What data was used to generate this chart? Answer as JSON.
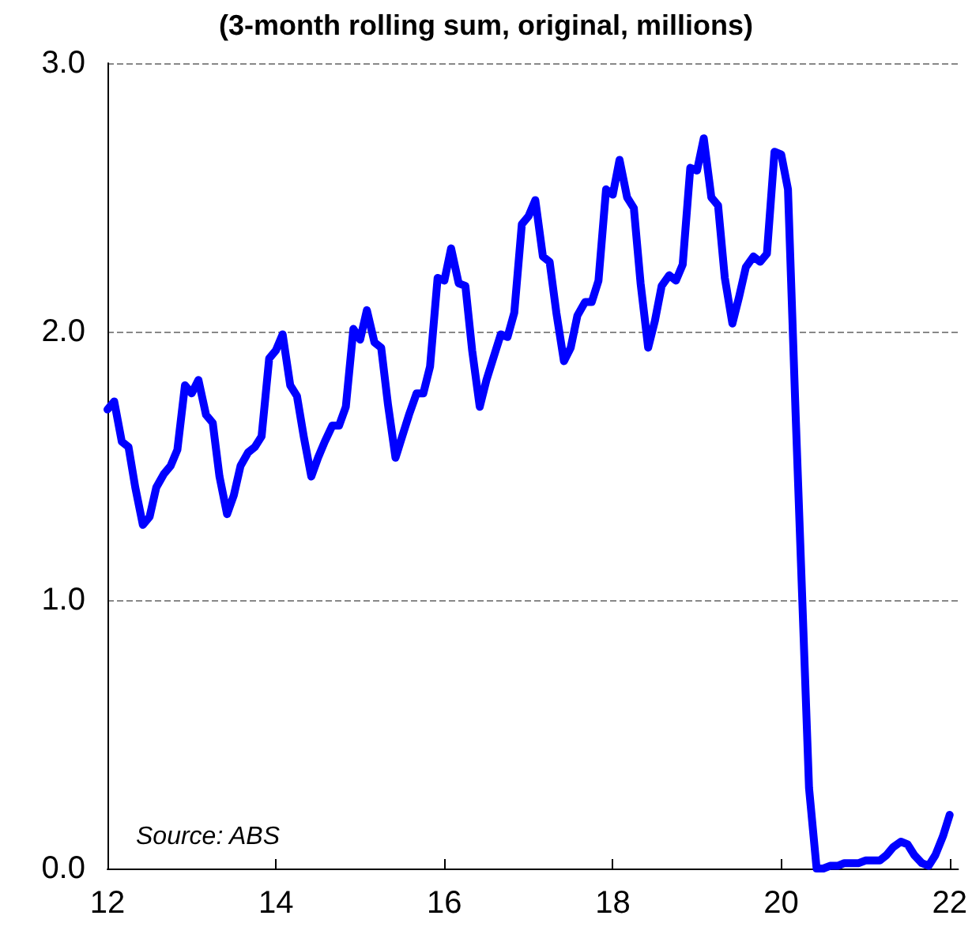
{
  "chart_data": {
    "type": "line",
    "title": "(3-month rolling sum, original, millions)",
    "annotations": [
      "Source: ABS"
    ],
    "x": [
      12,
      12.08,
      12.17,
      12.25,
      12.33,
      12.42,
      12.5,
      12.58,
      12.67,
      12.75,
      12.83,
      12.92,
      13,
      13.08,
      13.17,
      13.25,
      13.33,
      13.42,
      13.5,
      13.58,
      13.67,
      13.75,
      13.83,
      13.92,
      14,
      14.08,
      14.17,
      14.25,
      14.33,
      14.42,
      14.5,
      14.58,
      14.67,
      14.75,
      14.83,
      14.92,
      15,
      15.08,
      15.17,
      15.25,
      15.33,
      15.42,
      15.5,
      15.58,
      15.67,
      15.75,
      15.83,
      15.92,
      16,
      16.08,
      16.17,
      16.25,
      16.33,
      16.42,
      16.5,
      16.58,
      16.67,
      16.75,
      16.83,
      16.92,
      17,
      17.08,
      17.17,
      17.25,
      17.33,
      17.42,
      17.5,
      17.58,
      17.67,
      17.75,
      17.83,
      17.92,
      18,
      18.08,
      18.17,
      18.25,
      18.33,
      18.42,
      18.5,
      18.58,
      18.67,
      18.75,
      18.83,
      18.92,
      19,
      19.08,
      19.17,
      19.25,
      19.33,
      19.42,
      19.5,
      19.58,
      19.67,
      19.75,
      19.83,
      19.92,
      20,
      20.08,
      20.17,
      20.25,
      20.33,
      20.42,
      20.5,
      20.58,
      20.67,
      20.75,
      20.83,
      20.92,
      21,
      21.08,
      21.17,
      21.25,
      21.33,
      21.42,
      21.5,
      21.58,
      21.67,
      21.75,
      21.83,
      21.92,
      22
    ],
    "series": [
      {
        "color": "#0000ff",
        "values": [
          1.71,
          1.74,
          1.59,
          1.57,
          1.42,
          1.28,
          1.31,
          1.42,
          1.47,
          1.5,
          1.56,
          1.8,
          1.77,
          1.82,
          1.69,
          1.66,
          1.46,
          1.32,
          1.39,
          1.5,
          1.55,
          1.57,
          1.61,
          1.9,
          1.93,
          1.99,
          1.8,
          1.76,
          1.61,
          1.46,
          1.53,
          1.59,
          1.65,
          1.65,
          1.72,
          2.01,
          1.97,
          2.08,
          1.96,
          1.94,
          1.73,
          1.53,
          1.61,
          1.69,
          1.77,
          1.77,
          1.87,
          2.2,
          2.19,
          2.31,
          2.18,
          2.17,
          1.93,
          1.72,
          1.82,
          1.9,
          1.99,
          1.98,
          2.07,
          2.4,
          2.43,
          2.49,
          2.28,
          2.26,
          2.07,
          1.89,
          1.94,
          2.06,
          2.11,
          2.11,
          2.19,
          2.53,
          2.51,
          2.64,
          2.5,
          2.46,
          2.18,
          1.94,
          2.04,
          2.17,
          2.21,
          2.19,
          2.25,
          2.61,
          2.6,
          2.72,
          2.5,
          2.47,
          2.2,
          2.03,
          2.13,
          2.24,
          2.28,
          2.26,
          2.29,
          2.67,
          2.66,
          2.53,
          1.7,
          1.0,
          0.3,
          0,
          0,
          0.01,
          0.01,
          0.02,
          0.02,
          0.02,
          0.03,
          0.03,
          0.03,
          0.05,
          0.08,
          0.1,
          0.09,
          0.05,
          0.02,
          0.01,
          0.05,
          0.12,
          0.2
        ]
      }
    ],
    "xlim": [
      12,
      22.1
    ],
    "xticks": [
      12,
      14,
      16,
      18,
      20,
      22
    ],
    "ylim": [
      0,
      3
    ],
    "yticks": [
      {
        "value": 0,
        "label": "0.0"
      },
      {
        "value": 1,
        "label": "1.0"
      },
      {
        "value": 2,
        "label": "2.0"
      },
      {
        "value": 3,
        "label": "3.0"
      }
    ],
    "grid": "y",
    "marker": "none",
    "line_style": "solid"
  }
}
